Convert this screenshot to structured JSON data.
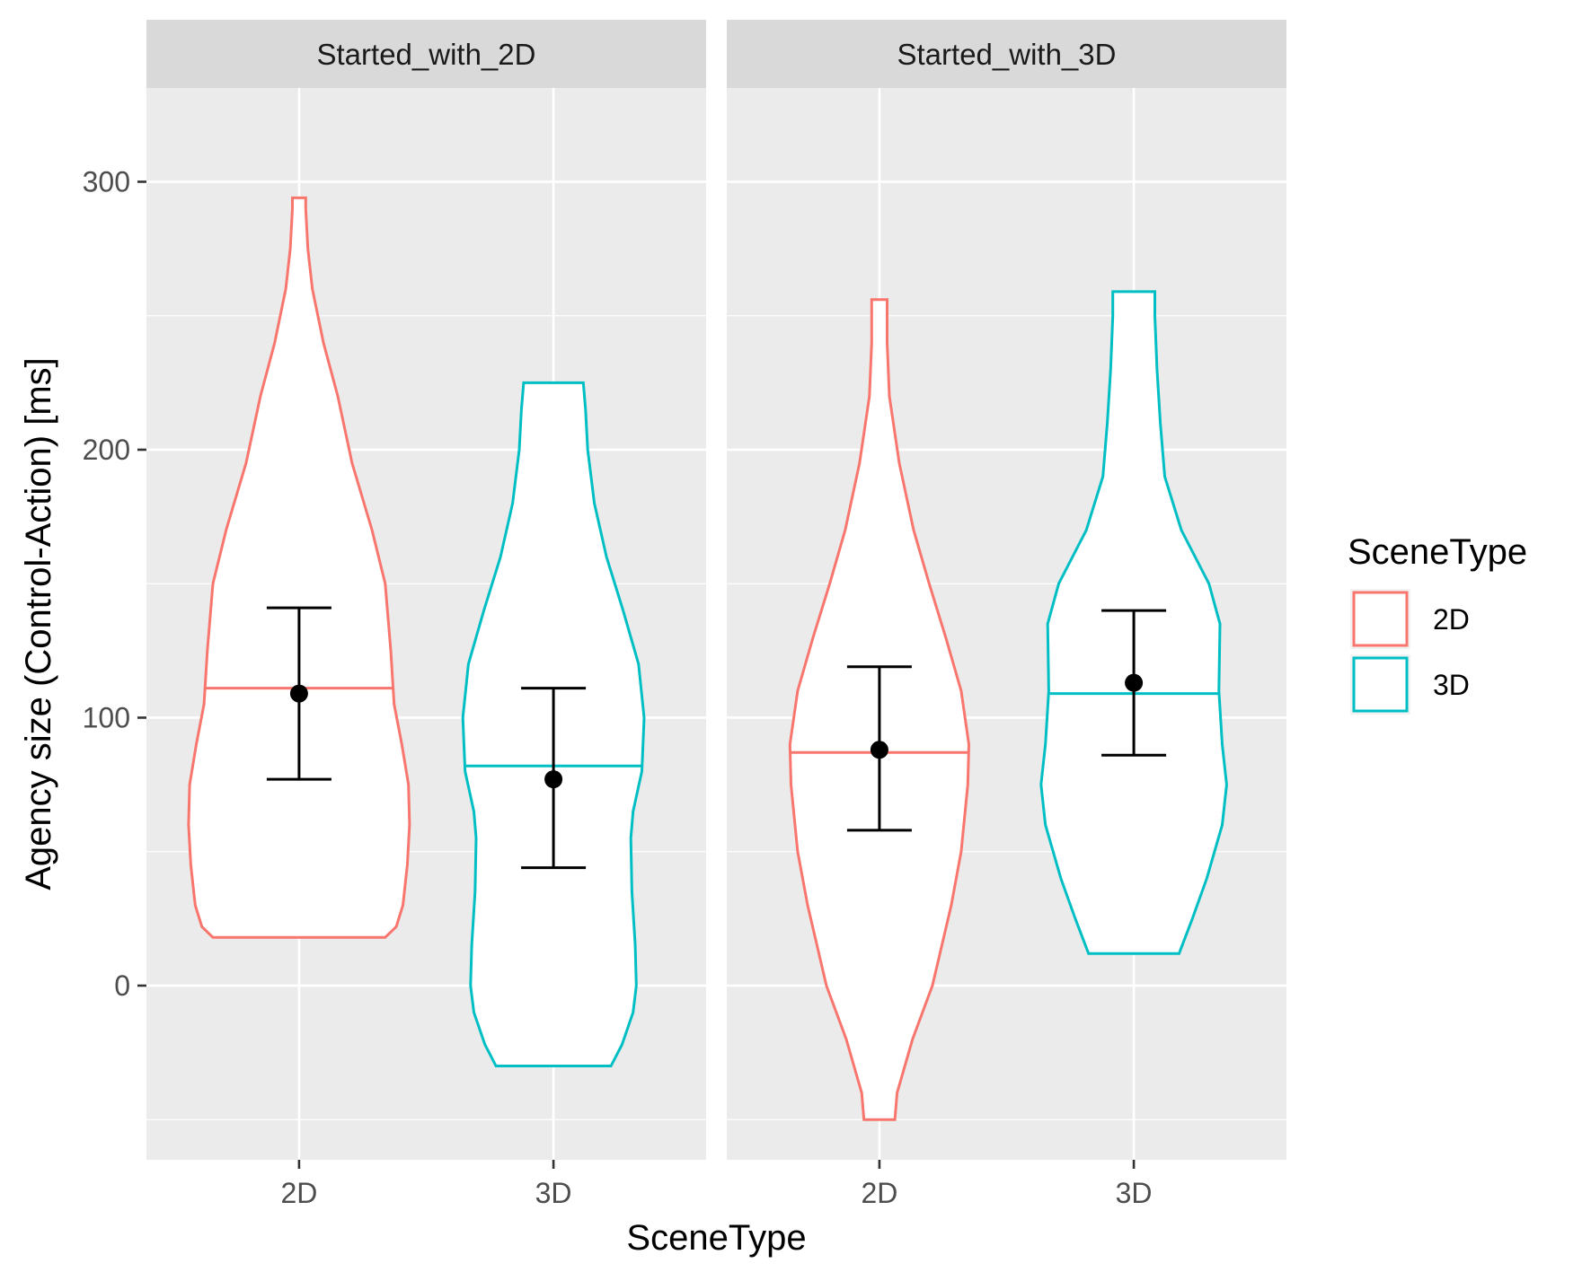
{
  "chart_data": {
    "type": "violin",
    "xlabel": "SceneType",
    "ylabel": "Agency size (Control-Action) [ms]",
    "ylim": [
      -65,
      335
    ],
    "yticks": [
      0,
      100,
      200,
      300
    ],
    "categories": [
      "2D",
      "3D"
    ],
    "legend": {
      "title": "SceneType",
      "position": "right",
      "entries": [
        {
          "label": "2D",
          "color": "#F8766D"
        },
        {
          "label": "3D",
          "color": "#00BFC4"
        }
      ]
    },
    "facets": [
      {
        "label": "Started_with_2D",
        "violins": [
          {
            "category": "2D",
            "color": "#F8766D",
            "mean": 109,
            "error_low": 77,
            "error_high": 141,
            "median": 111,
            "profile": [
              [
                18,
                0.78
              ],
              [
                22,
                0.88
              ],
              [
                30,
                0.94
              ],
              [
                45,
                0.98
              ],
              [
                60,
                1.0
              ],
              [
                75,
                0.99
              ],
              [
                90,
                0.93
              ],
              [
                105,
                0.86
              ],
              [
                125,
                0.83
              ],
              [
                150,
                0.78
              ],
              [
                170,
                0.66
              ],
              [
                195,
                0.48
              ],
              [
                220,
                0.35
              ],
              [
                240,
                0.22
              ],
              [
                260,
                0.12
              ],
              [
                275,
                0.08
              ],
              [
                290,
                0.06
              ],
              [
                294,
                0.06
              ]
            ]
          },
          {
            "category": "3D",
            "color": "#00BFC4",
            "mean": 77,
            "error_low": 44,
            "error_high": 111,
            "median": 82,
            "profile": [
              [
                -30,
                0.52
              ],
              [
                -22,
                0.62
              ],
              [
                -10,
                0.72
              ],
              [
                0,
                0.75
              ],
              [
                15,
                0.74
              ],
              [
                35,
                0.71
              ],
              [
                55,
                0.7
              ],
              [
                65,
                0.72
              ],
              [
                80,
                0.8
              ],
              [
                100,
                0.82
              ],
              [
                120,
                0.77
              ],
              [
                140,
                0.63
              ],
              [
                160,
                0.48
              ],
              [
                180,
                0.37
              ],
              [
                200,
                0.31
              ],
              [
                215,
                0.29
              ],
              [
                225,
                0.27
              ]
            ]
          }
        ]
      },
      {
        "label": "Started_with_3D",
        "violins": [
          {
            "category": "2D",
            "color": "#F8766D",
            "mean": 88,
            "error_low": 58,
            "error_high": 119,
            "median": 87,
            "profile": [
              [
                -50,
                0.14
              ],
              [
                -40,
                0.16
              ],
              [
                -20,
                0.3
              ],
              [
                0,
                0.48
              ],
              [
                30,
                0.65
              ],
              [
                50,
                0.74
              ],
              [
                75,
                0.8
              ],
              [
                90,
                0.81
              ],
              [
                110,
                0.74
              ],
              [
                130,
                0.6
              ],
              [
                150,
                0.45
              ],
              [
                170,
                0.31
              ],
              [
                195,
                0.18
              ],
              [
                220,
                0.09
              ],
              [
                240,
                0.07
              ],
              [
                256,
                0.07
              ]
            ]
          },
          {
            "category": "3D",
            "color": "#00BFC4",
            "mean": 113,
            "error_low": 86,
            "error_high": 140,
            "median": 109,
            "profile": [
              [
                12,
                0.41
              ],
              [
                25,
                0.53
              ],
              [
                40,
                0.66
              ],
              [
                60,
                0.8
              ],
              [
                75,
                0.84
              ],
              [
                90,
                0.8
              ],
              [
                110,
                0.77
              ],
              [
                135,
                0.78
              ],
              [
                150,
                0.68
              ],
              [
                170,
                0.43
              ],
              [
                190,
                0.28
              ],
              [
                210,
                0.24
              ],
              [
                230,
                0.21
              ],
              [
                250,
                0.19
              ],
              [
                259,
                0.19
              ]
            ]
          }
        ]
      }
    ]
  }
}
